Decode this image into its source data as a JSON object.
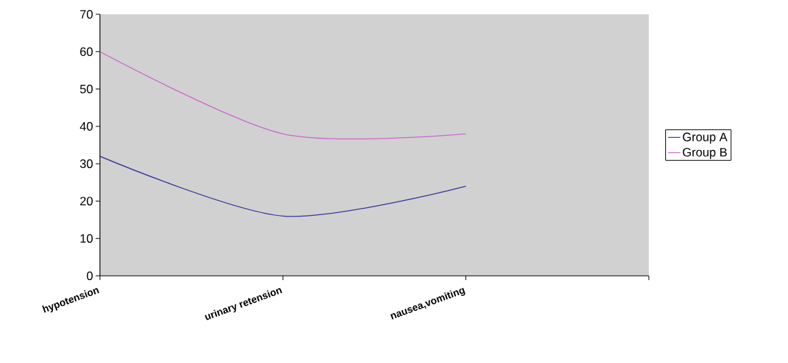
{
  "chart_data": {
    "type": "line",
    "categories": [
      "hypotension",
      "urinary retension",
      "nausea,vomiting",
      null
    ],
    "series": [
      {
        "name": "Group A",
        "color": "#333399",
        "values": [
          32,
          16,
          24,
          null
        ]
      },
      {
        "name": "Group B",
        "color": "#cc66cc",
        "values": [
          60,
          38,
          38,
          null
        ]
      }
    ],
    "ylim": [
      0,
      70
    ],
    "yticks": [
      0,
      10,
      20,
      30,
      40,
      50,
      60,
      70
    ],
    "grid": false,
    "legend": "right",
    "marker": "none",
    "line_style": "solid"
  }
}
